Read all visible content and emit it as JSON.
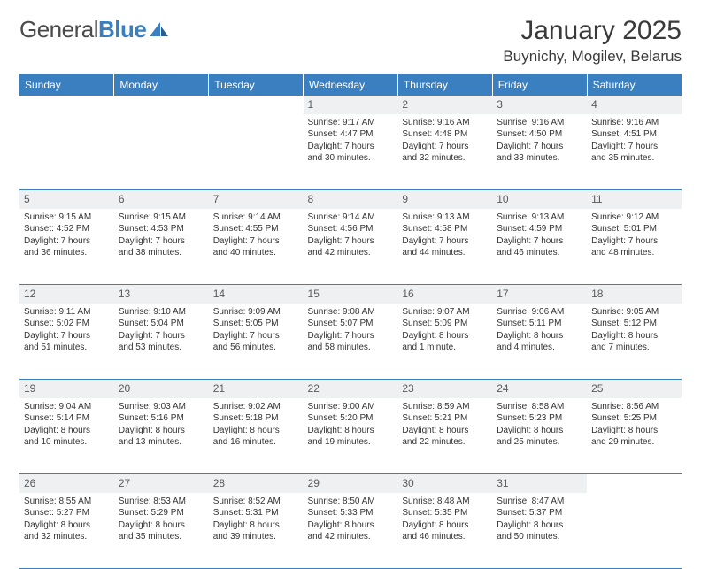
{
  "brand": {
    "name_a": "General",
    "name_b": "Blue"
  },
  "title": "January 2025",
  "location": "Buynichy, Mogilev, Belarus",
  "colors": {
    "header_bg": "#3a7fbf",
    "header_text": "#ffffff",
    "daynum_bg": "#eef0f2",
    "divider": "#3a7fbf",
    "text": "#333333",
    "brand_gray": "#4a4a4a",
    "brand_blue": "#3a7fbf"
  },
  "day_headers": [
    "Sunday",
    "Monday",
    "Tuesday",
    "Wednesday",
    "Thursday",
    "Friday",
    "Saturday"
  ],
  "weeks": [
    [
      null,
      null,
      null,
      {
        "n": "1",
        "sunrise": "9:17 AM",
        "sunset": "4:47 PM",
        "dl1": "Daylight: 7 hours",
        "dl2": "and 30 minutes."
      },
      {
        "n": "2",
        "sunrise": "9:16 AM",
        "sunset": "4:48 PM",
        "dl1": "Daylight: 7 hours",
        "dl2": "and 32 minutes."
      },
      {
        "n": "3",
        "sunrise": "9:16 AM",
        "sunset": "4:50 PM",
        "dl1": "Daylight: 7 hours",
        "dl2": "and 33 minutes."
      },
      {
        "n": "4",
        "sunrise": "9:16 AM",
        "sunset": "4:51 PM",
        "dl1": "Daylight: 7 hours",
        "dl2": "and 35 minutes."
      }
    ],
    [
      {
        "n": "5",
        "sunrise": "9:15 AM",
        "sunset": "4:52 PM",
        "dl1": "Daylight: 7 hours",
        "dl2": "and 36 minutes."
      },
      {
        "n": "6",
        "sunrise": "9:15 AM",
        "sunset": "4:53 PM",
        "dl1": "Daylight: 7 hours",
        "dl2": "and 38 minutes."
      },
      {
        "n": "7",
        "sunrise": "9:14 AM",
        "sunset": "4:55 PM",
        "dl1": "Daylight: 7 hours",
        "dl2": "and 40 minutes."
      },
      {
        "n": "8",
        "sunrise": "9:14 AM",
        "sunset": "4:56 PM",
        "dl1": "Daylight: 7 hours",
        "dl2": "and 42 minutes."
      },
      {
        "n": "9",
        "sunrise": "9:13 AM",
        "sunset": "4:58 PM",
        "dl1": "Daylight: 7 hours",
        "dl2": "and 44 minutes."
      },
      {
        "n": "10",
        "sunrise": "9:13 AM",
        "sunset": "4:59 PM",
        "dl1": "Daylight: 7 hours",
        "dl2": "and 46 minutes."
      },
      {
        "n": "11",
        "sunrise": "9:12 AM",
        "sunset": "5:01 PM",
        "dl1": "Daylight: 7 hours",
        "dl2": "and 48 minutes."
      }
    ],
    [
      {
        "n": "12",
        "sunrise": "9:11 AM",
        "sunset": "5:02 PM",
        "dl1": "Daylight: 7 hours",
        "dl2": "and 51 minutes."
      },
      {
        "n": "13",
        "sunrise": "9:10 AM",
        "sunset": "5:04 PM",
        "dl1": "Daylight: 7 hours",
        "dl2": "and 53 minutes."
      },
      {
        "n": "14",
        "sunrise": "9:09 AM",
        "sunset": "5:05 PM",
        "dl1": "Daylight: 7 hours",
        "dl2": "and 56 minutes."
      },
      {
        "n": "15",
        "sunrise": "9:08 AM",
        "sunset": "5:07 PM",
        "dl1": "Daylight: 7 hours",
        "dl2": "and 58 minutes."
      },
      {
        "n": "16",
        "sunrise": "9:07 AM",
        "sunset": "5:09 PM",
        "dl1": "Daylight: 8 hours",
        "dl2": "and 1 minute."
      },
      {
        "n": "17",
        "sunrise": "9:06 AM",
        "sunset": "5:11 PM",
        "dl1": "Daylight: 8 hours",
        "dl2": "and 4 minutes."
      },
      {
        "n": "18",
        "sunrise": "9:05 AM",
        "sunset": "5:12 PM",
        "dl1": "Daylight: 8 hours",
        "dl2": "and 7 minutes."
      }
    ],
    [
      {
        "n": "19",
        "sunrise": "9:04 AM",
        "sunset": "5:14 PM",
        "dl1": "Daylight: 8 hours",
        "dl2": "and 10 minutes."
      },
      {
        "n": "20",
        "sunrise": "9:03 AM",
        "sunset": "5:16 PM",
        "dl1": "Daylight: 8 hours",
        "dl2": "and 13 minutes."
      },
      {
        "n": "21",
        "sunrise": "9:02 AM",
        "sunset": "5:18 PM",
        "dl1": "Daylight: 8 hours",
        "dl2": "and 16 minutes."
      },
      {
        "n": "22",
        "sunrise": "9:00 AM",
        "sunset": "5:20 PM",
        "dl1": "Daylight: 8 hours",
        "dl2": "and 19 minutes."
      },
      {
        "n": "23",
        "sunrise": "8:59 AM",
        "sunset": "5:21 PM",
        "dl1": "Daylight: 8 hours",
        "dl2": "and 22 minutes."
      },
      {
        "n": "24",
        "sunrise": "8:58 AM",
        "sunset": "5:23 PM",
        "dl1": "Daylight: 8 hours",
        "dl2": "and 25 minutes."
      },
      {
        "n": "25",
        "sunrise": "8:56 AM",
        "sunset": "5:25 PM",
        "dl1": "Daylight: 8 hours",
        "dl2": "and 29 minutes."
      }
    ],
    [
      {
        "n": "26",
        "sunrise": "8:55 AM",
        "sunset": "5:27 PM",
        "dl1": "Daylight: 8 hours",
        "dl2": "and 32 minutes."
      },
      {
        "n": "27",
        "sunrise": "8:53 AM",
        "sunset": "5:29 PM",
        "dl1": "Daylight: 8 hours",
        "dl2": "and 35 minutes."
      },
      {
        "n": "28",
        "sunrise": "8:52 AM",
        "sunset": "5:31 PM",
        "dl1": "Daylight: 8 hours",
        "dl2": "and 39 minutes."
      },
      {
        "n": "29",
        "sunrise": "8:50 AM",
        "sunset": "5:33 PM",
        "dl1": "Daylight: 8 hours",
        "dl2": "and 42 minutes."
      },
      {
        "n": "30",
        "sunrise": "8:48 AM",
        "sunset": "5:35 PM",
        "dl1": "Daylight: 8 hours",
        "dl2": "and 46 minutes."
      },
      {
        "n": "31",
        "sunrise": "8:47 AM",
        "sunset": "5:37 PM",
        "dl1": "Daylight: 8 hours",
        "dl2": "and 50 minutes."
      },
      null
    ]
  ],
  "labels": {
    "sunrise_prefix": "Sunrise: ",
    "sunset_prefix": "Sunset: "
  }
}
